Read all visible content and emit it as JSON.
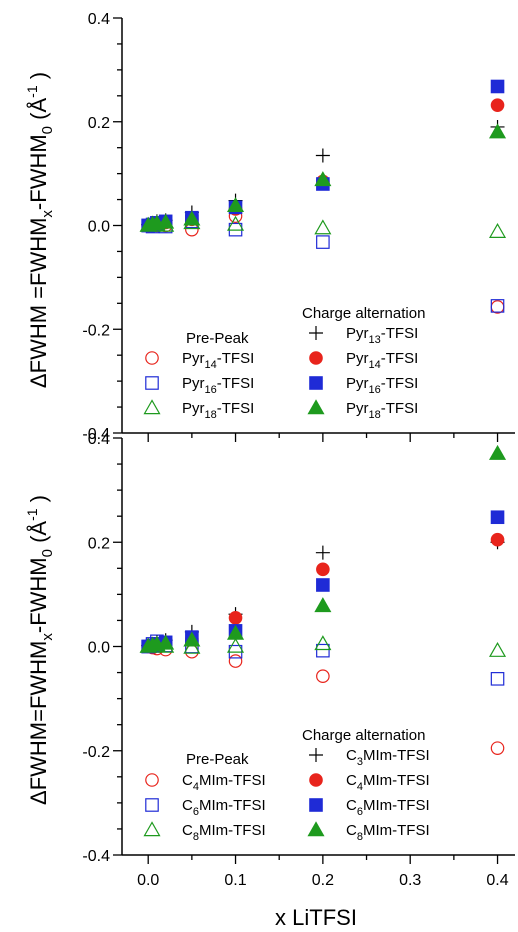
{
  "chart_data": [
    {
      "type": "scatter",
      "panel": "top",
      "ylabel": "ΔFWHM =FWHM",
      "ylabel_sub": "x",
      "ylabel_mid": "-FWHM",
      "ylabel_sub2": "0",
      "ylabel_unit": "(Å",
      "ylabel_sup": "-1",
      "ylabel_close": ")",
      "ylim": [
        -0.4,
        0.4
      ],
      "xlim": [
        -0.03,
        0.42
      ],
      "yticks": [
        "0.4",
        "0.2",
        "0.0",
        "-0.2",
        "-0.4"
      ],
      "yticks_values": [
        0.4,
        0.2,
        0.0,
        -0.2,
        -0.4
      ],
      "legend": {
        "prepeak_title": "Pre-Peak",
        "charge_title": "Charge alternation"
      },
      "series": [
        {
          "name": "Pyr",
          "sub": "14",
          "suffix": "-TFSI",
          "group": "pre",
          "marker": "circle-open",
          "color": "#e8241c",
          "x": [
            0.0,
            0.005,
            0.01,
            0.02,
            0.05,
            0.1,
            0.2,
            0.4
          ],
          "y": [
            0.0,
            0.0,
            0.0,
            0.0,
            -0.008,
            0.018,
            0.082,
            -0.157
          ]
        },
        {
          "name": "Pyr",
          "sub": "16",
          "suffix": "-TFSI",
          "group": "pre",
          "marker": "square-open",
          "color": "#1f2bd6",
          "x": [
            0.0,
            0.005,
            0.01,
            0.02,
            0.05,
            0.1,
            0.2,
            0.4
          ],
          "y": [
            0.0,
            -0.002,
            0.005,
            -0.002,
            0.008,
            -0.008,
            -0.032,
            -0.155
          ]
        },
        {
          "name": "Pyr",
          "sub": "18",
          "suffix": "-TFSI",
          "group": "pre",
          "marker": "triangle-open",
          "color": "#1e9a1e",
          "x": [
            0.0,
            0.005,
            0.01,
            0.02,
            0.05,
            0.1,
            0.2,
            0.4
          ],
          "y": [
            0.0,
            0.0,
            0.002,
            0.0,
            0.005,
            0.002,
            -0.005,
            -0.012
          ]
        },
        {
          "name": "Pyr",
          "sub": "13",
          "suffix": "-TFSI",
          "group": "charge",
          "marker": "plus",
          "color": "#000000",
          "x": [
            0.0,
            0.005,
            0.01,
            0.02,
            0.05,
            0.1,
            0.2,
            0.4
          ],
          "y": [
            0.002,
            0.005,
            0.008,
            0.01,
            0.025,
            0.048,
            0.135,
            0.19
          ]
        },
        {
          "name": "Pyr",
          "sub": "14",
          "suffix": "-TFSI",
          "group": "charge",
          "marker": "circle-filled",
          "color": "#e8241c",
          "x": [
            0.0,
            0.005,
            0.01,
            0.02,
            0.05,
            0.1,
            0.2,
            0.4
          ],
          "y": [
            0.0,
            0.002,
            0.004,
            0.006,
            0.012,
            0.032,
            0.085,
            0.232
          ]
        },
        {
          "name": "Pyr",
          "sub": "16",
          "suffix": "-TFSI",
          "group": "charge",
          "marker": "square-filled",
          "color": "#1f2bd6",
          "x": [
            0.0,
            0.005,
            0.01,
            0.02,
            0.05,
            0.1,
            0.2,
            0.4
          ],
          "y": [
            0.0,
            0.002,
            0.005,
            0.008,
            0.015,
            0.035,
            0.08,
            0.268
          ]
        },
        {
          "name": "Pyr",
          "sub": "18",
          "suffix": "-TFSI",
          "group": "charge",
          "marker": "triangle-filled",
          "color": "#1e9a1e",
          "x": [
            0.0,
            0.005,
            0.01,
            0.02,
            0.05,
            0.1,
            0.2,
            0.4
          ],
          "y": [
            0.0,
            0.002,
            0.004,
            0.006,
            0.012,
            0.038,
            0.088,
            0.18
          ]
        }
      ]
    },
    {
      "type": "scatter",
      "panel": "bottom",
      "ylabel": "ΔFWHM=FWHM",
      "ylabel_sub": "x",
      "ylabel_mid": "-FWHM",
      "ylabel_sub2": "0",
      "ylabel_unit": "(Å",
      "ylabel_sup": "-1",
      "ylabel_close": ")",
      "xlabel": "x LiTFSI",
      "ylim": [
        -0.4,
        0.4
      ],
      "xlim": [
        -0.03,
        0.42
      ],
      "yticks": [
        "0.4",
        "0.2",
        "0.0",
        "-0.2",
        "-0.4"
      ],
      "yticks_values": [
        0.4,
        0.2,
        0.0,
        -0.2,
        -0.4
      ],
      "xticks": [
        "0.0",
        "0.1",
        "0.2",
        "0.3",
        "0.4"
      ],
      "xticks_values": [
        0.0,
        0.1,
        0.2,
        0.3,
        0.4
      ],
      "legend": {
        "prepeak_title": "Pre-Peak",
        "charge_title": "Charge alternation"
      },
      "series": [
        {
          "name": "C",
          "sub": "4",
          "suffix": "MIm-TFSI",
          "group": "pre",
          "marker": "circle-open",
          "color": "#e8241c",
          "x": [
            0.0,
            0.005,
            0.01,
            0.02,
            0.05,
            0.1,
            0.2,
            0.4
          ],
          "y": [
            0.0,
            -0.002,
            -0.004,
            -0.006,
            -0.01,
            -0.028,
            -0.057,
            -0.195
          ]
        },
        {
          "name": "C",
          "sub": "6",
          "suffix": "MIm-TFSI",
          "group": "pre",
          "marker": "square-open",
          "color": "#1f2bd6",
          "x": [
            0.0,
            0.005,
            0.01,
            0.02,
            0.05,
            0.1,
            0.2,
            0.4
          ],
          "y": [
            0.0,
            0.005,
            0.01,
            0.002,
            0.0,
            -0.01,
            -0.008,
            -0.062
          ]
        },
        {
          "name": "C",
          "sub": "8",
          "suffix": "MIm-TFSI",
          "group": "pre",
          "marker": "triangle-open",
          "color": "#1e9a1e",
          "x": [
            0.0,
            0.005,
            0.01,
            0.02,
            0.05,
            0.1,
            0.2,
            0.4
          ],
          "y": [
            0.0,
            0.0,
            0.002,
            0.0,
            -0.002,
            0.0,
            0.005,
            -0.008
          ]
        },
        {
          "name": "C",
          "sub": "3",
          "suffix": "MIm-TFSI",
          "group": "charge",
          "marker": "plus",
          "color": "#000000",
          "x": [
            0.0,
            0.005,
            0.01,
            0.02,
            0.05,
            0.1,
            0.2,
            0.4
          ],
          "y": [
            0.002,
            0.005,
            0.008,
            0.012,
            0.028,
            0.062,
            0.18,
            0.2
          ]
        },
        {
          "name": "C",
          "sub": "4",
          "suffix": "MIm-TFSI",
          "group": "charge",
          "marker": "circle-filled",
          "color": "#e8241c",
          "x": [
            0.0,
            0.005,
            0.01,
            0.02,
            0.05,
            0.1,
            0.2,
            0.4
          ],
          "y": [
            0.0,
            0.002,
            0.004,
            0.008,
            0.015,
            0.055,
            0.148,
            0.205
          ]
        },
        {
          "name": "C",
          "sub": "6",
          "suffix": "MIm-TFSI",
          "group": "charge",
          "marker": "square-filled",
          "color": "#1f2bd6",
          "x": [
            0.0,
            0.005,
            0.01,
            0.02,
            0.05,
            0.1,
            0.2,
            0.4
          ],
          "y": [
            0.0,
            0.002,
            0.005,
            0.008,
            0.018,
            0.03,
            0.118,
            0.248
          ]
        },
        {
          "name": "C",
          "sub": "8",
          "suffix": "MIm-TFSI",
          "group": "charge",
          "marker": "triangle-filled",
          "color": "#1e9a1e",
          "x": [
            0.0,
            0.005,
            0.01,
            0.02,
            0.05,
            0.1,
            0.2,
            0.4
          ],
          "y": [
            0.0,
            0.002,
            0.004,
            0.006,
            0.012,
            0.025,
            0.078,
            0.37
          ]
        }
      ]
    }
  ]
}
